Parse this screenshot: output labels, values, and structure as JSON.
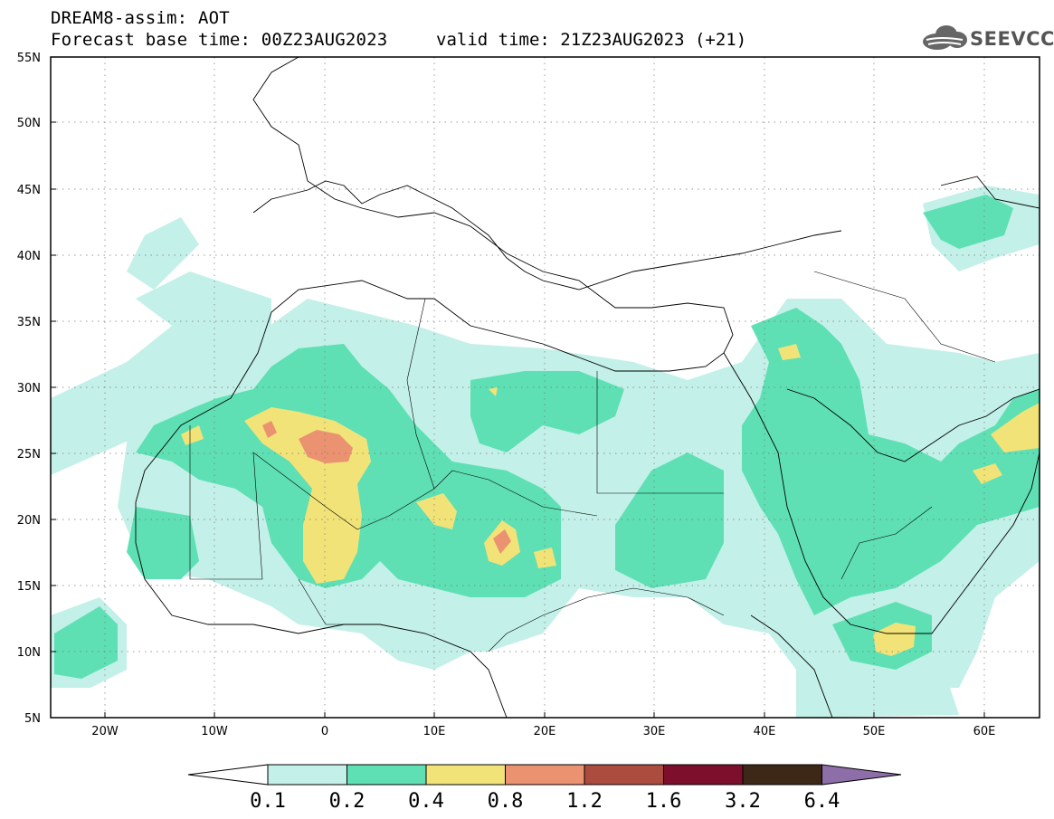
{
  "header": {
    "line1": "DREAM8-assim: AOT",
    "line2": "Forecast base time: 00Z23AUG2023",
    "valid": "valid time: 21Z23AUG2023 (+21)",
    "logo_text": "SEEVCCC"
  },
  "map": {
    "lon_range": [
      -25,
      65
    ],
    "lat_range": [
      5,
      55
    ],
    "lat_labels": [
      "5N",
      "10N",
      "15N",
      "20N",
      "25N",
      "30N",
      "35N",
      "40N",
      "45N",
      "50N",
      "55N"
    ],
    "lon_labels": [
      "20W",
      "10W",
      "0",
      "10E",
      "20E",
      "30E",
      "40E",
      "50E",
      "60E"
    ],
    "gridlines": "dotted"
  },
  "colorbar": {
    "colors": [
      "#c3f0e8",
      "#5ee0b4",
      "#f2e378",
      "#eb9270",
      "#ac4c3e",
      "#7d0f2c",
      "#3d2818",
      "#8e6ea8"
    ],
    "thresholds": [
      "0.1",
      "0.2",
      "0.4",
      "0.8",
      "1.2",
      "1.6",
      "3.2",
      "6.4"
    ]
  }
}
